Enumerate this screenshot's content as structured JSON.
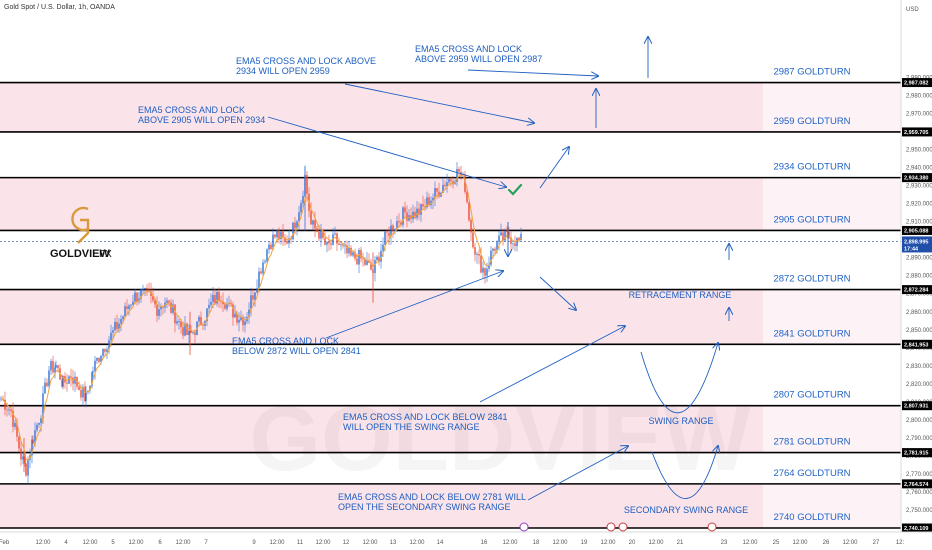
{
  "header": {
    "symbol": "Gold Spot / U.S. Dollar, 1h, OANDA",
    "currency": "USD"
  },
  "logo": {
    "text_main": "GOLDVIEW",
    "text_suffix": "FX",
    "watermark": "GOLDVIEW"
  },
  "colors": {
    "zone_fill": "#fbe3ea",
    "level_line": "#000000",
    "annotation": "#1e5fc0",
    "candle_up": "#2f6fd6",
    "candle_down": "#ea4b33",
    "ema": "#f0a23c",
    "check": "#26a35a",
    "logo_gold": "#d99a3b"
  },
  "chart_data": {
    "type": "candlestick",
    "title": "Gold Spot / U.S. Dollar, 1h, OANDA",
    "ylabel": "USD",
    "ylim": [
      2735,
      2993
    ],
    "x_ticks": [
      "Feb",
      "12:00",
      "4",
      "12:00",
      "5",
      "12:00",
      "6",
      "12:00",
      "7",
      "9",
      "12:00",
      "11",
      "12:00",
      "12",
      "12:00",
      "13",
      "12:00",
      "14",
      "16",
      "12:00",
      "18",
      "12:00",
      "19",
      "12:00",
      "20",
      "12:00",
      "21",
      "23",
      "12:00",
      "25",
      "12:00",
      "26",
      "12:00",
      "27",
      "12:"
    ],
    "y_ticks": [
      2750,
      2760,
      2770,
      2780,
      2790,
      2800,
      2810,
      2820,
      2830,
      2840,
      2850,
      2860,
      2870,
      2880,
      2890,
      2900,
      2910,
      2920,
      2930,
      2940,
      2950,
      2960,
      2970,
      2980,
      2990
    ],
    "levels": [
      {
        "value": 2987.082,
        "label": "2987 GOLDTURN",
        "tag": "2,987.082"
      },
      {
        "value": 2959.705,
        "label": "2959 GOLDTURN",
        "tag": "2,959.705"
      },
      {
        "value": 2934.38,
        "label": "2934 GOLDTURN",
        "tag": "2,934.380"
      },
      {
        "value": 2905.088,
        "label": "2905 GOLDTURN",
        "tag": "2,905.088"
      },
      {
        "value": 2872.284,
        "label": "2872 GOLDTURN",
        "tag": "2,872.284"
      },
      {
        "value": 2841.953,
        "label": "2841 GOLDTURN",
        "tag": "2,841.953"
      },
      {
        "value": 2807.931,
        "label": "2807 GOLDTURN",
        "tag": "2,807.931"
      },
      {
        "value": 2781.915,
        "label": "2781 GOLDTURN",
        "tag": "2,781.915"
      },
      {
        "value": 2764.574,
        "label": "2764 GOLDTURN",
        "tag": "2,764.574"
      },
      {
        "value": 2740.109,
        "label": "2740 GOLDTURN",
        "tag": "2,740.109"
      }
    ],
    "current_price": {
      "value": 2898.995,
      "tag": "2,898.995",
      "countdown": "17:44"
    },
    "zones": [
      [
        2959.705,
        2987.082
      ],
      [
        2905.088,
        2934.38
      ],
      [
        2841.953,
        2872.284
      ],
      [
        2781.915,
        2807.931
      ],
      [
        2740.109,
        2764.574
      ]
    ],
    "range_labels": [
      "RETRACEMENT RANGE",
      "SWING RANGE",
      "SECONDARY SWING RANGE"
    ],
    "annotations": [
      {
        "lines": [
          "EMA5 CROSS AND LOCK ABOVE",
          "2934 WILL OPEN 2959"
        ]
      },
      {
        "lines": [
          "EMA5 CROSS AND LOCK",
          "ABOVE 2959 WILL OPEN 2987"
        ]
      },
      {
        "lines": [
          "EMA5 CROSS AND LOCK",
          "ABOVE 2905 WILL OPEN 2934"
        ]
      },
      {
        "lines": [
          "EMA5 CROSS AND LOCK",
          "BELOW 2872 WILL OPEN 2841"
        ]
      },
      {
        "lines": [
          "EMA5 CROSS AND LOCK BELOW 2841",
          "WILL OPEN THE SWING RANGE"
        ]
      },
      {
        "lines": [
          "EMA5 CROSS AND LOCK BELOW 2781 WILL",
          "OPEN THE SECONDARY SWING RANGE"
        ]
      }
    ],
    "price_path": [
      [
        0,
        2812
      ],
      [
        10,
        2805
      ],
      [
        20,
        2780
      ],
      [
        25,
        2773
      ],
      [
        32,
        2790
      ],
      [
        40,
        2805
      ],
      [
        48,
        2828
      ],
      [
        55,
        2830
      ],
      [
        62,
        2820
      ],
      [
        70,
        2825
      ],
      [
        78,
        2818
      ],
      [
        85,
        2812
      ],
      [
        92,
        2828
      ],
      [
        100,
        2838
      ],
      [
        108,
        2845
      ],
      [
        116,
        2852
      ],
      [
        124,
        2860
      ],
      [
        132,
        2868
      ],
      [
        140,
        2870
      ],
      [
        148,
        2868
      ],
      [
        156,
        2862
      ],
      [
        164,
        2866
      ],
      [
        172,
        2860
      ],
      [
        180,
        2852
      ],
      [
        188,
        2846
      ],
      [
        196,
        2852
      ],
      [
        204,
        2858
      ],
      [
        212,
        2866
      ],
      [
        220,
        2870
      ],
      [
        228,
        2862
      ],
      [
        236,
        2858
      ],
      [
        244,
        2856
      ],
      [
        252,
        2870
      ],
      [
        260,
        2885
      ],
      [
        268,
        2898
      ],
      [
        276,
        2903
      ],
      [
        284,
        2898
      ],
      [
        292,
        2906
      ],
      [
        300,
        2922
      ],
      [
        304,
        2935
      ],
      [
        310,
        2908
      ],
      [
        318,
        2904
      ],
      [
        326,
        2895
      ],
      [
        334,
        2900
      ],
      [
        342,
        2894
      ],
      [
        350,
        2890
      ],
      [
        358,
        2890
      ],
      [
        366,
        2886
      ],
      [
        372,
        2882
      ],
      [
        380,
        2895
      ],
      [
        388,
        2905
      ],
      [
        396,
        2910
      ],
      [
        404,
        2915
      ],
      [
        412,
        2914
      ],
      [
        420,
        2916
      ],
      [
        428,
        2922
      ],
      [
        436,
        2926
      ],
      [
        444,
        2932
      ],
      [
        450,
        2934
      ],
      [
        458,
        2938
      ],
      [
        464,
        2930
      ],
      [
        470,
        2905
      ],
      [
        476,
        2890
      ],
      [
        484,
        2882
      ],
      [
        492,
        2895
      ],
      [
        500,
        2900
      ],
      [
        508,
        2902
      ],
      [
        516,
        2899
      ],
      [
        522,
        2898.995
      ]
    ]
  }
}
